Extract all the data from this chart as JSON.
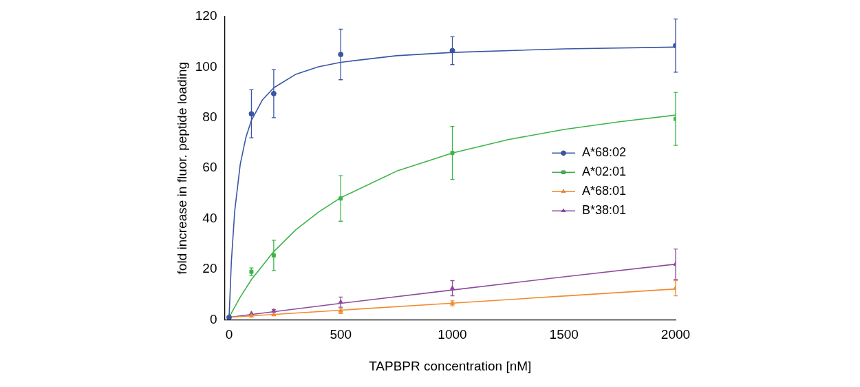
{
  "chart_data": {
    "type": "scatter",
    "xlabel": "TAPBPR concentration [nM]",
    "ylabel": "fold increase in fluor. peptide loading",
    "x": [
      0,
      100,
      200,
      500,
      1000,
      2000
    ],
    "xlim": [
      -20,
      2000
    ],
    "xticks": [
      0,
      500,
      1000,
      1500,
      2000
    ],
    "ylim": [
      0,
      120
    ],
    "yticks": [
      0,
      20,
      40,
      60,
      80,
      100,
      120
    ],
    "grid": false,
    "legend": "right",
    "series": [
      {
        "name": "A*68:02",
        "type": "scatter",
        "color": "#3a55a5",
        "marker": "circle",
        "values": [
          1,
          81.5,
          89.5,
          105,
          106.5,
          108.5
        ],
        "errors": [
          null,
          9.5,
          9.5,
          10,
          5.5,
          10.5
        ]
      },
      {
        "name": "A*02:01",
        "type": "scatter",
        "color": "#3cb44a",
        "marker": "square",
        "values": [
          null,
          19,
          25.5,
          48,
          66,
          79.5
        ],
        "errors": [
          null,
          1.5,
          6,
          9,
          10.5,
          10.5
        ]
      },
      {
        "name": "A*68:01",
        "type": "scatter",
        "color": "#f28a2e",
        "marker": "triangle",
        "values": [
          null,
          1.5,
          2,
          3.5,
          6.5,
          12.5
        ],
        "errors": [
          null,
          null,
          null,
          1,
          1,
          3
        ]
      },
      {
        "name": "B*38:01",
        "type": "scatter",
        "color": "#8e4a9e",
        "marker": "triangle",
        "values": [
          null,
          2.5,
          3.5,
          7,
          12.5,
          22
        ],
        "errors": [
          null,
          null,
          0.5,
          2,
          3,
          6
        ]
      },
      {
        "type": "line",
        "color": "#3a55a5",
        "marker": "none",
        "x": [
          0,
          10,
          25,
          50,
          75,
          100,
          150,
          200,
          300,
          400,
          500,
          750,
          1000,
          1500,
          2000
        ],
        "values": [
          1,
          22.8,
          42.9,
          61.6,
          72.1,
          78.9,
          87.1,
          91.8,
          97.2,
          100.1,
          101.9,
          104.5,
          105.8,
          107.2,
          107.9
        ]
      },
      {
        "type": "line",
        "color": "#3cb44a",
        "marker": "none",
        "x": [
          0,
          50,
          100,
          200,
          300,
          400,
          500,
          750,
          1000,
          1250,
          1500,
          1750,
          2000
        ],
        "values": [
          1,
          9,
          15.9,
          27,
          35.7,
          42.6,
          48.3,
          58.8,
          66,
          71.3,
          75.3,
          78.4,
          81
        ]
      },
      {
        "type": "line",
        "color": "#f28a2e",
        "marker": "none",
        "x": [
          0,
          500,
          1000,
          1500,
          2000
        ],
        "values": [
          1,
          3.8,
          6.6,
          9.4,
          12.2
        ]
      },
      {
        "type": "line",
        "color": "#8e4a9e",
        "marker": "none",
        "x": [
          0,
          500,
          1000,
          1500,
          2000
        ],
        "values": [
          1,
          6.5,
          11.8,
          17,
          22
        ]
      }
    ]
  }
}
